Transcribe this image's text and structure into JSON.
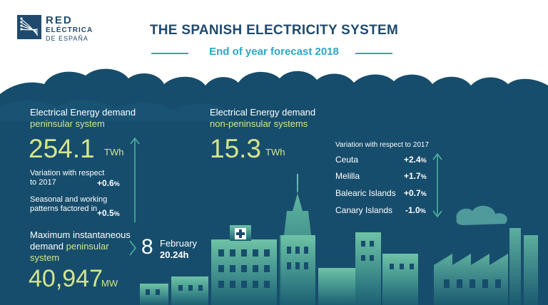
{
  "brand": {
    "line1": "RED",
    "line2": "ELÉCTRICA",
    "line3": "DE ESPAÑA"
  },
  "header": {
    "title": "THE SPANISH ELECTRICITY SYSTEM",
    "subtitle": "End of year forecast 2018"
  },
  "peninsular": {
    "label_line1": "Electrical Energy demand",
    "label_line2": "peninsular system",
    "value": "254.1",
    "unit": "TWh",
    "variation_label": "Variation with respect to 2017",
    "variation_line1": "Variation with respect",
    "variation_line2": "to 2017",
    "variation_value": "+0.6",
    "seasonal_line1": "Seasonal and working",
    "seasonal_line2": "patterns factored in",
    "seasonal_value": "+0.5",
    "pct_symbol": "%"
  },
  "maximum": {
    "label_line1": "Maximum instantaneous",
    "label_line2a": "demand",
    "label_line2b": "peninsular",
    "label_line3": "system",
    "value": "40,947",
    "unit": "MW",
    "day": "8",
    "month": "February",
    "time": "20.24h"
  },
  "non_peninsular": {
    "label_line1": "Electrical Energy demand",
    "label_line2": "non-peninsular systems",
    "value": "15.3",
    "unit": "TWh",
    "variation_heading": "Variation with respect to 2017",
    "pct_symbol": "%",
    "rows": [
      {
        "name": "Ceuta",
        "value": "+2.4"
      },
      {
        "name": "Melilla",
        "value": "+1.7"
      },
      {
        "name": "Balearic Islands",
        "value": "+0.7"
      },
      {
        "name": "Canary Islands",
        "value": "-1.0"
      }
    ]
  },
  "colors": {
    "navy": "#1f4a6e",
    "panel": "#174d6c",
    "lime": "#d3e58e",
    "accent": "#2aa7c6",
    "city_light": "#6ec3a6"
  },
  "icons": [
    "logo-mark-icon",
    "up-arrow-icon",
    "up-down-arrow-icon",
    "chevron-right-icon",
    "cross-sign-icon"
  ]
}
